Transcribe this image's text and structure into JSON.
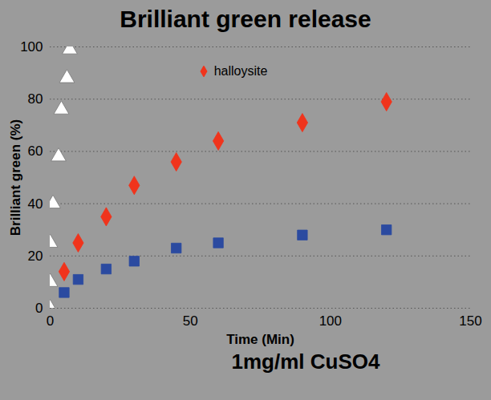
{
  "chart_data": {
    "type": "scatter",
    "title": "Brilliant green release",
    "xlabel": "Time (Min)",
    "ylabel": "Brilliant green (%)",
    "caption": "1mg/ml CuSO4",
    "xlim": [
      0,
      150
    ],
    "xticks": [
      0,
      50,
      100,
      150
    ],
    "ylim": [
      0,
      100
    ],
    "yticks": [
      0,
      20,
      40,
      60,
      80,
      100
    ],
    "grid": true,
    "legend": "top",
    "series": [
      {
        "color": "#ffffff",
        "marker": "triangle",
        "x": [
          0,
          0,
          0,
          1,
          3,
          4,
          6,
          7
        ],
        "values": [
          0,
          10,
          25,
          40,
          58,
          76,
          88,
          99
        ]
      },
      {
        "name": "halloysite",
        "color": "#f0341c",
        "marker": "diamond",
        "x": [
          5,
          10,
          20,
          30,
          45,
          60,
          90,
          120
        ],
        "values": [
          14,
          25,
          35,
          47,
          56,
          64,
          71,
          79
        ]
      },
      {
        "color": "#2b4aa0",
        "marker": "square",
        "x": [
          5,
          10,
          20,
          30,
          45,
          60,
          90,
          120
        ],
        "values": [
          6,
          11,
          15,
          18,
          23,
          25,
          28,
          30
        ]
      }
    ]
  }
}
